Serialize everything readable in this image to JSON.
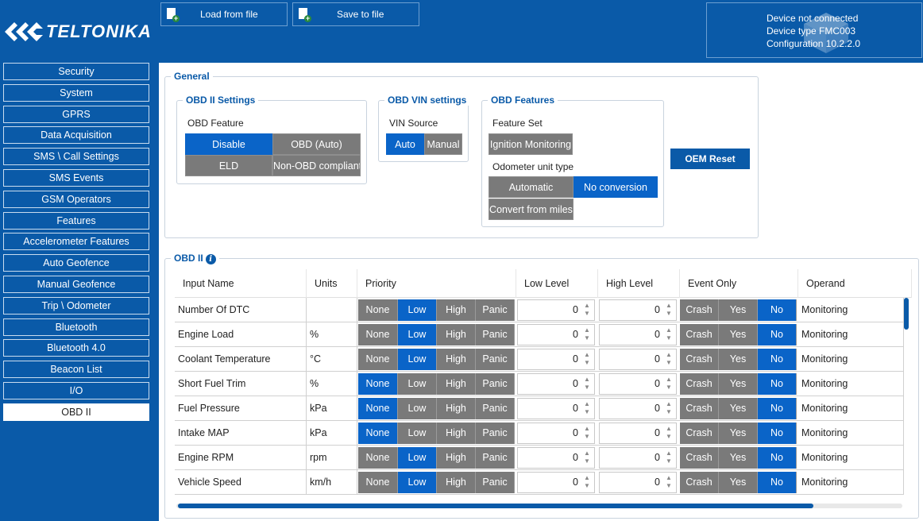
{
  "header": {
    "logo_text": "TELTONIKA",
    "load_label": "Load from file",
    "save_label": "Save to file",
    "status_line1": "Device not connected",
    "status_line2": "Device type  FMC003",
    "status_line3": "Configuration  10.2.2.0"
  },
  "sidebar": {
    "items": [
      "Security",
      "System",
      "GPRS",
      "Data Acquisition",
      "SMS \\ Call Settings",
      "SMS Events",
      "GSM Operators",
      "Features",
      "Accelerometer Features",
      "Auto Geofence",
      "Manual Geofence",
      "Trip \\ Odometer",
      "Bluetooth",
      "Bluetooth 4.0",
      "Beacon List",
      "I/O",
      "OBD II"
    ],
    "active": "OBD II"
  },
  "general": {
    "title": "General",
    "obd_settings": {
      "title": "OBD II Settings",
      "feature_label": "OBD Feature",
      "buttons": [
        "Disable",
        "OBD (Auto)",
        "ELD",
        "Non-OBD compliant"
      ],
      "selected": "Disable"
    },
    "vin": {
      "title": "OBD VIN settings",
      "source_label": "VIN Source",
      "buttons": [
        "Auto",
        "Manual"
      ],
      "selected": "Auto"
    },
    "features": {
      "title": "OBD Features",
      "feature_set_label": "Feature Set",
      "feature_set_button": "Ignition Monitoring",
      "odometer_label": "Odometer unit type",
      "odometer_buttons": [
        "Automatic",
        "No conversion",
        "Convert from miles"
      ],
      "odometer_selected": "No conversion"
    },
    "oem_reset": "OEM Reset"
  },
  "obd_table": {
    "title": "OBD II",
    "columns": [
      "Input Name",
      "Units",
      "Priority",
      "Low Level",
      "High Level",
      "Event Only",
      "Operand"
    ],
    "priority_options": [
      "None",
      "Low",
      "High",
      "Panic"
    ],
    "event_options": [
      "Crash",
      "Yes",
      "No"
    ],
    "rows": [
      {
        "name": "Number Of DTC",
        "units": "",
        "priority": "Low",
        "low": "0",
        "high": "0",
        "event": "No",
        "operand": "Monitoring"
      },
      {
        "name": "Engine Load",
        "units": "%",
        "priority": "Low",
        "low": "0",
        "high": "0",
        "event": "No",
        "operand": "Monitoring"
      },
      {
        "name": "Coolant Temperature",
        "units": "°C",
        "priority": "Low",
        "low": "0",
        "high": "0",
        "event": "No",
        "operand": "Monitoring"
      },
      {
        "name": "Short Fuel Trim",
        "units": "%",
        "priority": "None",
        "low": "0",
        "high": "0",
        "event": "No",
        "operand": "Monitoring"
      },
      {
        "name": "Fuel Pressure",
        "units": "kPa",
        "priority": "None",
        "low": "0",
        "high": "0",
        "event": "No",
        "operand": "Monitoring"
      },
      {
        "name": "Intake MAP",
        "units": "kPa",
        "priority": "None",
        "low": "0",
        "high": "0",
        "event": "No",
        "operand": "Monitoring"
      },
      {
        "name": "Engine RPM",
        "units": "rpm",
        "priority": "Low",
        "low": "0",
        "high": "0",
        "event": "No",
        "operand": "Monitoring"
      },
      {
        "name": "Vehicle Speed",
        "units": "km/h",
        "priority": "Low",
        "low": "0",
        "high": "0",
        "event": "No",
        "operand": "Monitoring"
      }
    ]
  },
  "colors": {
    "brand": "#0a5aa8",
    "selected": "#0a64c8",
    "unselected": "#7a7a7a"
  }
}
